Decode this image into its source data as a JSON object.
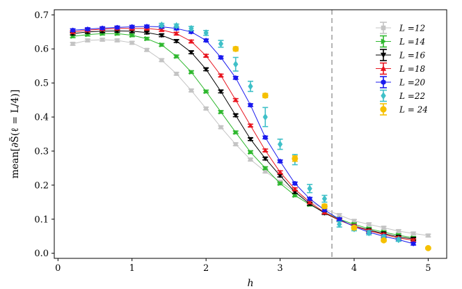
{
  "chart_data": {
    "type": "line",
    "xlabel": "h",
    "ylabel": "mean[∂S̃(ℓ = L/4)]",
    "xlim": [
      -0.05,
      5.25
    ],
    "ylim": [
      -0.015,
      0.715
    ],
    "xticks": [
      0,
      1,
      2,
      3,
      4,
      5
    ],
    "xtick_labels": [
      "0",
      "1",
      "2",
      "3",
      "4",
      "5"
    ],
    "yticks": [
      0.0,
      0.1,
      0.2,
      0.3,
      0.4,
      0.5,
      0.6,
      0.7
    ],
    "ytick_labels": [
      "0.0",
      "0.1",
      "0.2",
      "0.3",
      "0.4",
      "0.5",
      "0.6",
      "0.7"
    ],
    "vline": {
      "x": 3.7,
      "color": "#b8b8b8",
      "style": "dashed"
    },
    "legend_position": "top-right",
    "grid": false,
    "series": [
      {
        "name": "L =12",
        "color": "#c4c4c4",
        "marker": "square",
        "connected": true,
        "x": [
          0.2,
          0.4,
          0.6,
          0.8,
          1.0,
          1.2,
          1.4,
          1.6,
          1.8,
          2.0,
          2.2,
          2.4,
          2.6,
          2.8,
          3.0,
          3.2,
          3.4,
          3.6,
          3.8,
          4.0,
          4.2,
          4.4,
          4.6,
          4.8,
          5.0
        ],
        "y": [
          0.615,
          0.625,
          0.627,
          0.625,
          0.618,
          0.597,
          0.567,
          0.527,
          0.478,
          0.425,
          0.37,
          0.32,
          0.275,
          0.24,
          0.21,
          0.18,
          0.152,
          0.13,
          0.112,
          0.095,
          0.085,
          0.075,
          0.065,
          0.058,
          0.052
        ],
        "err": [
          0.004,
          0.004,
          0.004,
          0.004,
          0.004,
          0.004,
          0.004,
          0.004,
          0.004,
          0.004,
          0.004,
          0.004,
          0.004,
          0.004,
          0.004,
          0.004,
          0.004,
          0.004,
          0.004,
          0.004,
          0.004,
          0.004,
          0.004,
          0.004,
          0.004
        ]
      },
      {
        "name": "L =14",
        "color": "#2eb82e",
        "marker": "triangle-right",
        "connected": true,
        "x": [
          0.2,
          0.4,
          0.6,
          0.8,
          1.0,
          1.2,
          1.4,
          1.6,
          1.8,
          2.0,
          2.2,
          2.4,
          2.6,
          2.8,
          3.0,
          3.2,
          3.4,
          3.6,
          3.8,
          4.0,
          4.2,
          4.4,
          4.6,
          4.8
        ],
        "y": [
          0.637,
          0.642,
          0.645,
          0.645,
          0.64,
          0.63,
          0.612,
          0.578,
          0.532,
          0.475,
          0.415,
          0.355,
          0.297,
          0.25,
          0.205,
          0.17,
          0.143,
          0.12,
          0.1,
          0.085,
          0.072,
          0.062,
          0.053,
          0.045
        ],
        "err": [
          0.004,
          0.004,
          0.004,
          0.004,
          0.004,
          0.004,
          0.004,
          0.004,
          0.004,
          0.004,
          0.004,
          0.004,
          0.004,
          0.004,
          0.004,
          0.004,
          0.004,
          0.004,
          0.004,
          0.004,
          0.004,
          0.004,
          0.004,
          0.004
        ]
      },
      {
        "name": "L =16",
        "color": "#000000",
        "marker": "triangle-down",
        "connected": true,
        "x": [
          0.2,
          0.4,
          0.6,
          0.8,
          1.0,
          1.2,
          1.4,
          1.6,
          1.8,
          2.0,
          2.2,
          2.4,
          2.6,
          2.8,
          3.0,
          3.2,
          3.4,
          3.6,
          3.8,
          4.0,
          4.2,
          4.4,
          4.6,
          4.8
        ],
        "y": [
          0.645,
          0.65,
          0.652,
          0.653,
          0.652,
          0.648,
          0.64,
          0.623,
          0.59,
          0.54,
          0.475,
          0.405,
          0.335,
          0.278,
          0.228,
          0.18,
          0.145,
          0.118,
          0.097,
          0.08,
          0.068,
          0.058,
          0.048,
          0.042
        ],
        "err": [
          0.004,
          0.004,
          0.004,
          0.004,
          0.004,
          0.004,
          0.004,
          0.004,
          0.004,
          0.004,
          0.004,
          0.004,
          0.004,
          0.004,
          0.004,
          0.004,
          0.004,
          0.004,
          0.004,
          0.004,
          0.004,
          0.004,
          0.004,
          0.004
        ]
      },
      {
        "name": "L =18",
        "color": "#e8141e",
        "marker": "triangle-up",
        "connected": true,
        "x": [
          0.2,
          0.4,
          0.6,
          0.8,
          1.0,
          1.2,
          1.4,
          1.6,
          1.8,
          2.0,
          2.2,
          2.4,
          2.6,
          2.8,
          3.0,
          3.2,
          3.4,
          3.6,
          3.8,
          4.0,
          4.2,
          4.4,
          4.6,
          4.8
        ],
        "y": [
          0.65,
          0.655,
          0.658,
          0.66,
          0.66,
          0.66,
          0.656,
          0.645,
          0.622,
          0.58,
          0.522,
          0.45,
          0.375,
          0.302,
          0.238,
          0.188,
          0.15,
          0.12,
          0.097,
          0.08,
          0.066,
          0.055,
          0.045,
          0.038
        ],
        "err": [
          0.004,
          0.004,
          0.004,
          0.004,
          0.004,
          0.004,
          0.004,
          0.004,
          0.004,
          0.004,
          0.004,
          0.004,
          0.004,
          0.004,
          0.004,
          0.004,
          0.004,
          0.004,
          0.004,
          0.004,
          0.004,
          0.004,
          0.004,
          0.004
        ]
      },
      {
        "name": "L =20",
        "color": "#1a1aee",
        "marker": "hexagon",
        "connected": true,
        "x": [
          0.2,
          0.4,
          0.6,
          0.8,
          1.0,
          1.2,
          1.4,
          1.6,
          1.8,
          2.0,
          2.2,
          2.4,
          2.6,
          2.8,
          3.0,
          3.2,
          3.4,
          3.6,
          3.8,
          4.0,
          4.2,
          4.4,
          4.6,
          4.8
        ],
        "y": [
          0.655,
          0.658,
          0.661,
          0.663,
          0.665,
          0.666,
          0.665,
          0.66,
          0.65,
          0.625,
          0.575,
          0.515,
          0.435,
          0.34,
          0.27,
          0.205,
          0.16,
          0.127,
          0.1,
          0.078,
          0.062,
          0.05,
          0.04,
          0.028
        ],
        "err": [
          0.004,
          0.004,
          0.004,
          0.004,
          0.004,
          0.004,
          0.004,
          0.004,
          0.004,
          0.004,
          0.004,
          0.004,
          0.004,
          0.004,
          0.004,
          0.004,
          0.004,
          0.004,
          0.004,
          0.004,
          0.004,
          0.004,
          0.004,
          0.004
        ]
      },
      {
        "name": "L =22",
        "color": "#3fc0c8",
        "marker": "diamond",
        "connected": false,
        "x": [
          1.4,
          1.6,
          1.8,
          2.0,
          2.2,
          2.4,
          2.6,
          2.8,
          3.0,
          3.2,
          3.4,
          3.6,
          3.8,
          4.0,
          4.2,
          4.4,
          4.6
        ],
        "y": [
          0.67,
          0.668,
          0.66,
          0.647,
          0.615,
          0.555,
          0.49,
          0.4,
          0.32,
          0.275,
          0.19,
          0.16,
          0.085,
          0.072,
          0.06,
          0.048,
          0.04
        ],
        "err": [
          0.005,
          0.005,
          0.006,
          0.007,
          0.01,
          0.02,
          0.015,
          0.028,
          0.015,
          0.015,
          0.012,
          0.01,
          0.008,
          0.006,
          0.006,
          0.005,
          0.005
        ]
      },
      {
        "name": "L = 24",
        "color": "#f5c000",
        "marker": "circle",
        "connected": false,
        "x": [
          2.4,
          2.8,
          3.2,
          3.6,
          4.0,
          4.4,
          5.0
        ],
        "y": [
          0.6,
          0.463,
          0.278,
          0.138,
          0.075,
          0.038,
          0.015
        ],
        "err": [
          0.006,
          0.006,
          0.008,
          0.006,
          0.005,
          0.004,
          0.003
        ]
      }
    ]
  }
}
